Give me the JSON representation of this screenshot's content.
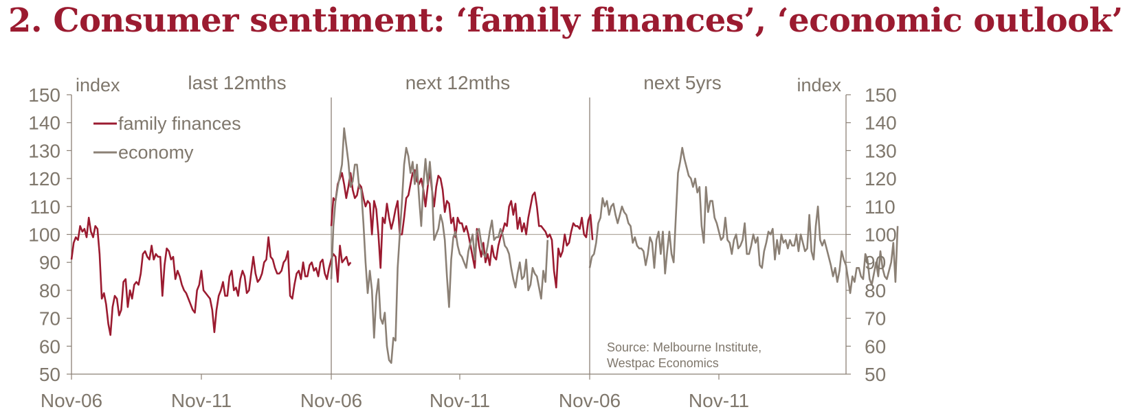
{
  "title": "2. Consumer sentiment: ‘family finances’, ‘economic outlook’",
  "colors": {
    "title": "#9b1b30",
    "family": "#9b1b30",
    "economy": "#8b8075",
    "axis": "#8b8075",
    "text": "#7f776c",
    "ref": "#b0a89f"
  },
  "chart_data": {
    "type": "line",
    "y_axis_label_left": "index",
    "y_axis_label_right": "index",
    "ylim": [
      50,
      150
    ],
    "yticks": [
      150,
      140,
      130,
      120,
      110,
      100,
      90,
      80,
      70,
      60,
      50
    ],
    "reference_line": 100,
    "source": [
      "Source: Melbourne Institute,",
      "Westpac Economics"
    ],
    "legend": {
      "placement": "top-left",
      "entries": [
        "family finances",
        "economy"
      ]
    },
    "panels": [
      {
        "label": "last 12mths",
        "xticks": [
          "Nov-06",
          "Nov-11"
        ],
        "x_start": "2006-11",
        "series": [
          {
            "name": "family finances",
            "values": [
              91,
              97,
              99,
              98,
              103,
              101,
              102,
              99,
              106,
              101,
              99,
              103,
              102,
              93,
              77,
              79,
              75,
              68,
              64,
              74,
              78,
              77,
              71,
              73,
              83,
              84,
              74,
              80,
              77,
              82,
              83,
              82,
              86,
              93,
              94,
              92,
              91,
              96,
              91,
              93,
              92,
              92,
              78,
              89,
              95,
              94,
              91,
              92,
              84,
              87,
              85,
              82,
              80,
              79,
              77,
              75,
              73,
              72,
              80,
              82,
              87,
              80,
              79,
              78,
              77,
              73,
              65,
              73,
              78,
              80,
              83,
              78,
              78,
              85,
              87,
              80,
              81,
              78,
              84,
              87,
              85,
              79,
              80,
              86,
              92,
              86,
              83,
              84,
              86,
              90,
              91,
              99,
              92,
              91,
              88,
              86,
              86,
              87,
              90,
              91,
              94,
              78,
              77,
              82,
              86,
              87,
              84,
              90,
              85,
              85,
              89,
              90,
              87,
              88,
              85,
              90,
              91,
              86,
              84,
              88,
              91,
              93,
              92,
              83,
              96,
              90,
              91,
              92,
              89,
              90
            ]
          }
        ]
      },
      {
        "label": "next 12mths",
        "xticks": [
          "Nov-06",
          "Nov-11"
        ],
        "x_start": "2006-11",
        "series": [
          {
            "name": "family finances",
            "values": [
              103,
              113,
              112,
              118,
              120,
              122,
              118,
              113,
              117,
              122,
              116,
              113,
              114,
              118,
              117,
              113,
              110,
              112,
              111,
              100,
              112,
              109,
              100,
              88,
              106,
              104,
              111,
              106,
              102,
              105,
              109,
              112,
              100,
              100,
              106,
              113,
              114,
              118,
              122,
              123,
              119,
              118,
              120,
              116,
              110,
              117,
              123,
              116,
              110,
              117,
              121,
              120,
              116,
              108,
              112,
              111,
              104,
              106,
              99,
              106,
              104,
              104,
              101,
              103,
              100,
              96,
              92,
              88,
              102,
              96,
              92,
              97,
              90,
              93,
              89,
              96,
              92,
              91,
              96,
              99,
              101,
              104,
              103,
              110,
              112,
              107,
              111,
              102,
              106,
              101,
              104,
              100,
              106,
              110,
              114,
              115,
              110,
              103,
              103,
              102,
              101,
              99,
              100,
              98,
              87,
              81,
              95,
              92,
              94,
              100,
              96,
              97,
              101,
              104,
              103,
              103,
              102,
              106,
              100,
              99,
              105,
              107,
              98
            ]
          },
          {
            "name": "economy",
            "values": [
              84,
              103,
              112,
              117,
              121,
              125,
              138,
              132,
              126,
              117,
              119,
              125,
              125,
              117,
              116,
              104,
              90,
              79,
              87,
              80,
              63,
              78,
              84,
              70,
              68,
              72,
              60,
              55,
              54,
              63,
              62,
              88,
              100,
              112,
              125,
              131,
              128,
              122,
              126,
              118,
              125,
              113,
              103,
              118,
              127,
              118,
              126,
              117,
              98,
              100,
              102,
              107,
              104,
              98,
              85,
              74,
              91,
              99,
              101,
              96,
              93,
              92,
              90,
              88,
              94,
              97,
              100,
              91,
              101,
              102,
              97,
              93,
              92,
              96,
              101,
              105,
              98,
              99,
              99,
              102,
              100,
              96,
              95,
              93,
              88,
              84,
              81,
              86,
              90,
              84,
              85,
              91,
              80,
              82,
              88,
              86,
              85,
              81,
              77,
              87,
              83,
              98
            ]
          }
        ]
      },
      {
        "label": "next 5yrs",
        "xticks": [
          "Nov-06",
          "Nov-11"
        ],
        "x_start": "2006-11",
        "series": [
          {
            "name": "economy",
            "values": [
              88,
              92,
              93,
              97,
              104,
              106,
              113,
              110,
              112,
              107,
              110,
              111,
              107,
              104,
              107,
              110,
              108,
              107,
              104,
              103,
              97,
              99,
              96,
              95,
              95,
              94,
              89,
              93,
              99,
              97,
              88,
              98,
              101,
              93,
              101,
              86,
              94,
              101,
              93,
              90,
              106,
              122,
              126,
              131,
              127,
              124,
              121,
              120,
              117,
              120,
              115,
              117,
              103,
              97,
              117,
              108,
              112,
              112,
              106,
              104,
              101,
              98,
              99,
              106,
              98,
              97,
              93,
              98,
              100,
              95,
              96,
              98,
              104,
              93,
              93,
              96,
              100,
              97,
              99,
              89,
              88,
              94,
              97,
              101,
              100,
              102,
              91,
              98,
              93,
              100,
              97,
              98,
              95,
              98,
              96,
              96,
              100,
              94,
              100,
              97,
              94,
              95,
              107,
              94,
              91,
              103,
              110,
              98,
              96,
              98,
              95,
              92,
              89,
              85,
              88,
              83,
              87,
              94,
              91,
              89,
              84,
              79,
              85,
              83,
              88,
              88,
              85,
              84,
              93,
              91,
              84,
              82,
              86,
              90,
              85,
              94,
              88,
              85,
              84,
              87,
              90,
              97,
              83,
              103
            ]
          }
        ]
      }
    ]
  }
}
